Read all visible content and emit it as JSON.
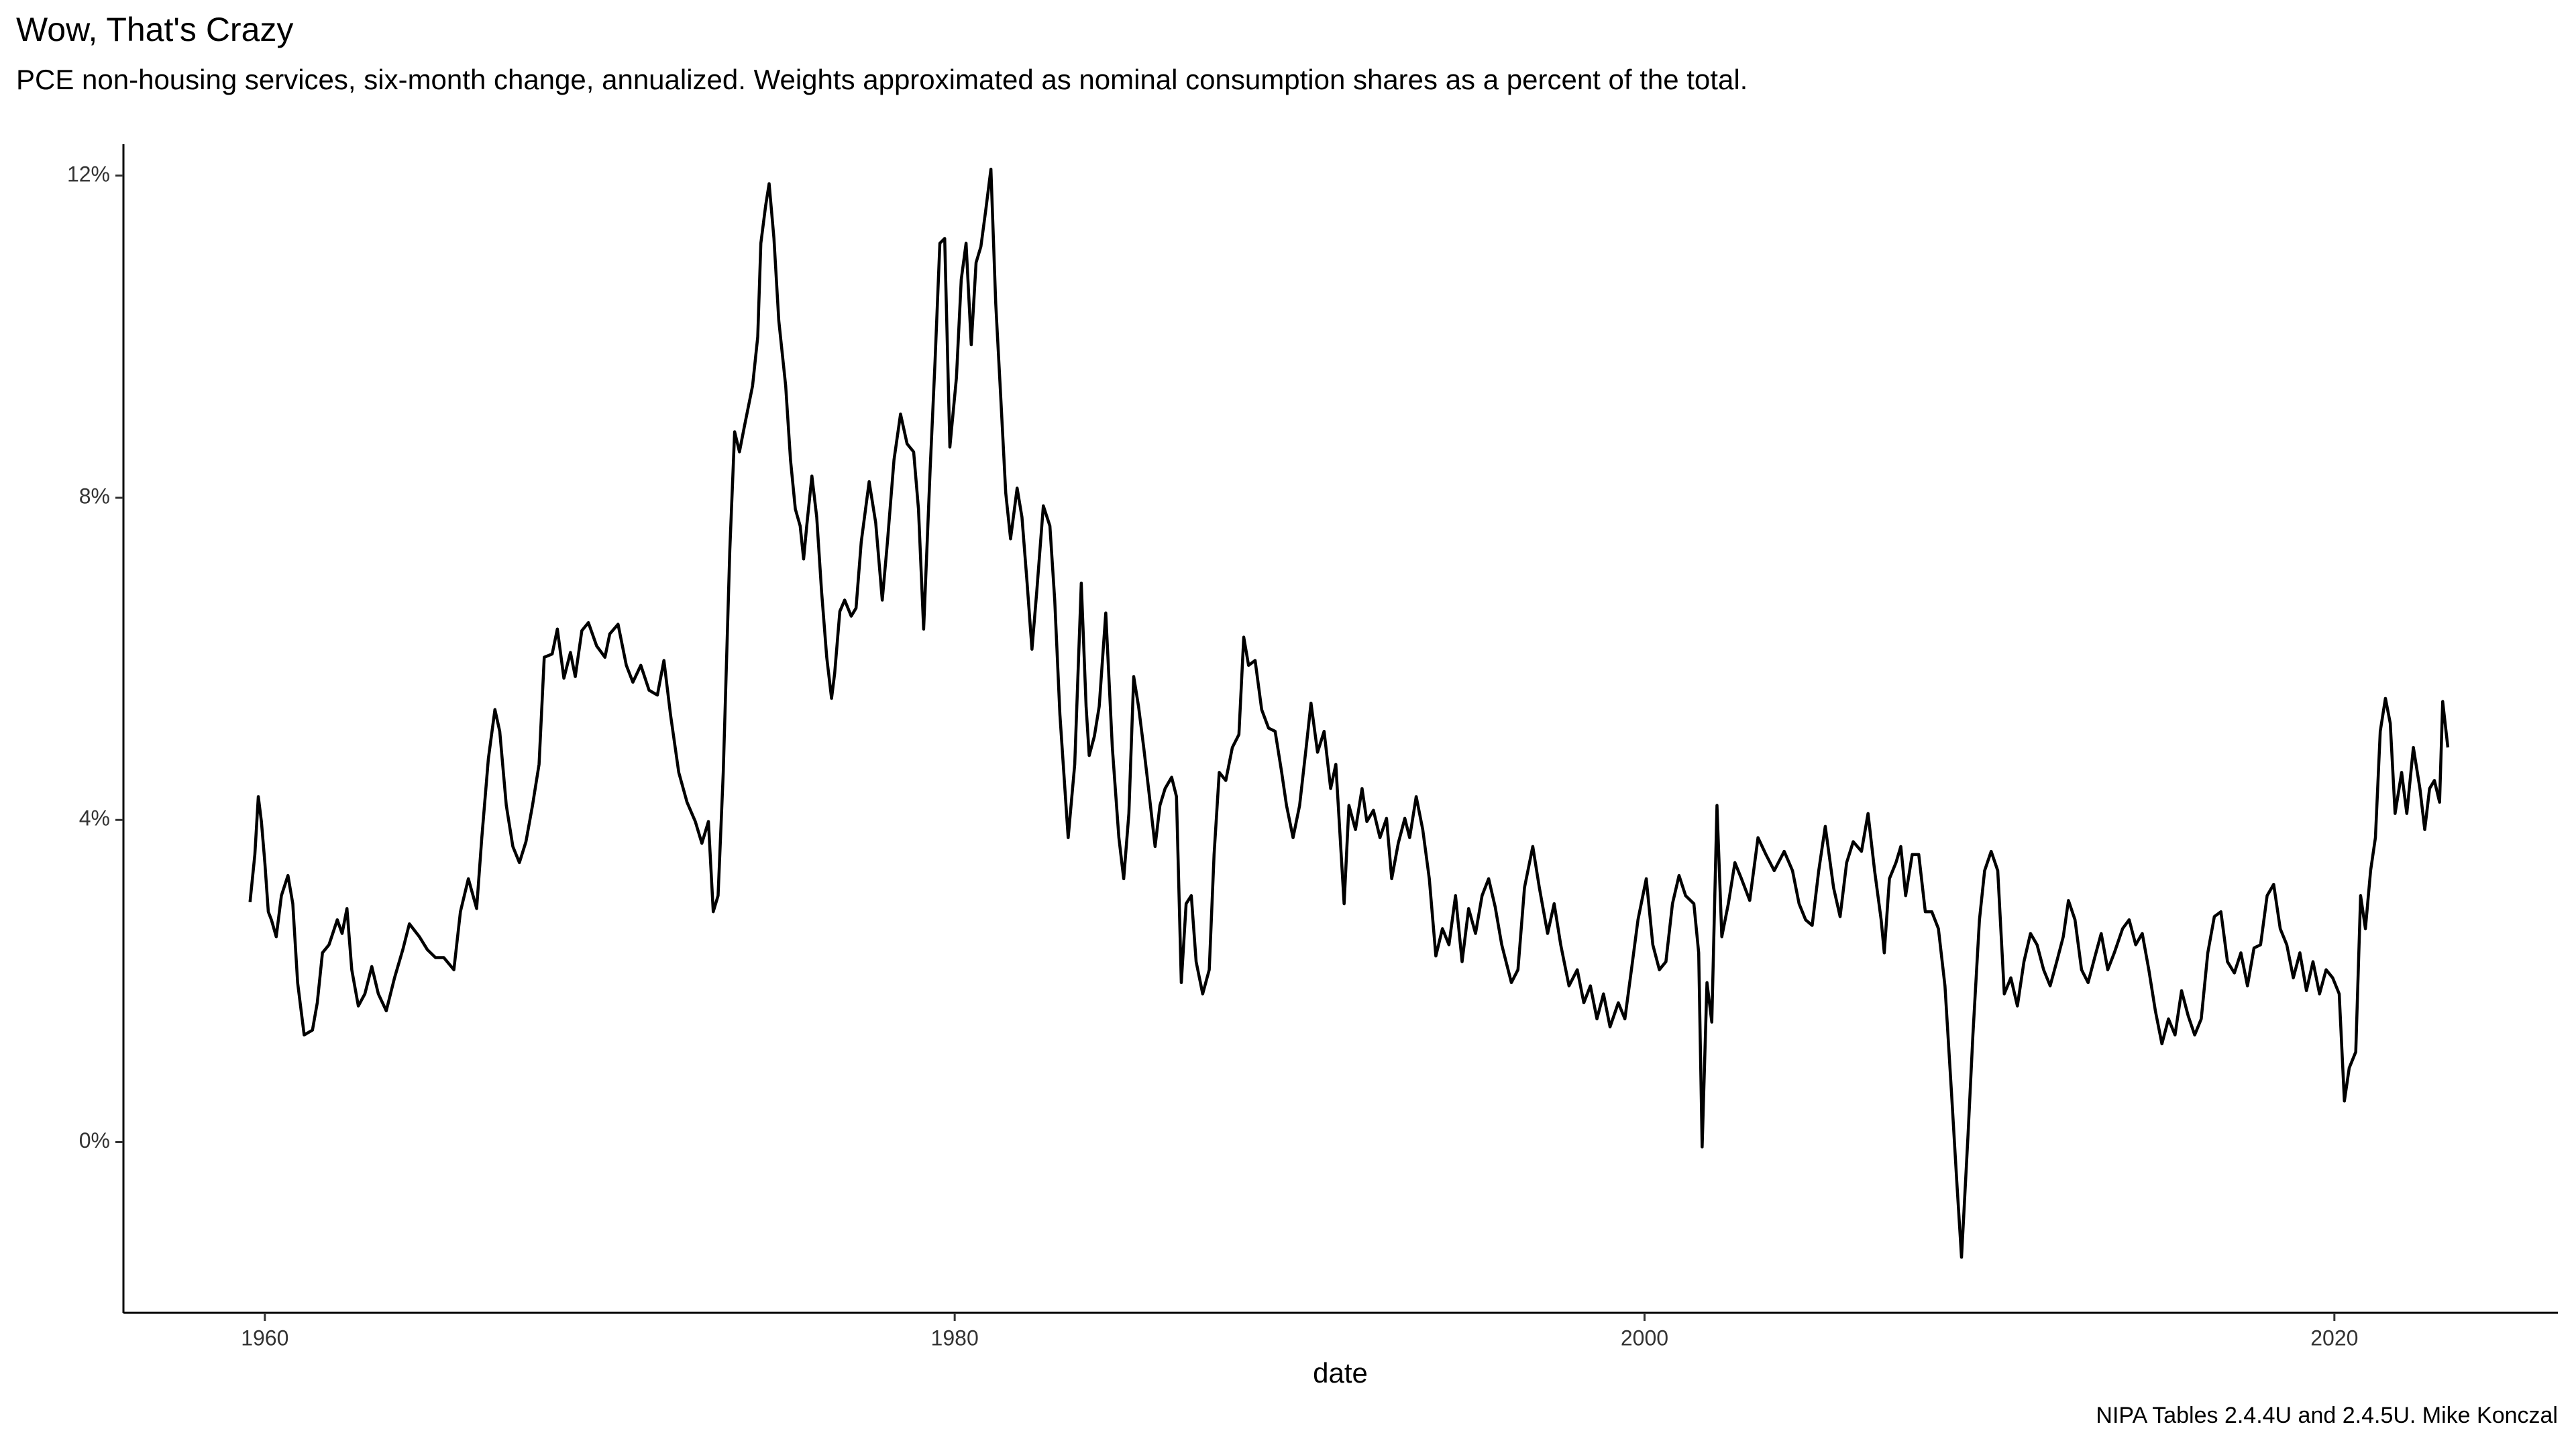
{
  "chart_data": {
    "type": "line",
    "title": "Wow, That's Crazy",
    "subtitle": "PCE non-housing services, six-month change, annualized. Weights approximated as nominal consumption shares as a percent of the total.",
    "x_label": "date",
    "caption": "NIPA Tables 2.4.4U and 2.4.5U. Mike Konczal",
    "color": "#000000",
    "xlim": [
      1955.9,
      2026.48
    ],
    "ylim": [
      -2.12,
      12.39
    ],
    "xticks": [
      1960,
      1980,
      2000,
      2020
    ],
    "yticks": [
      {
        "value": 0,
        "label": "0%"
      },
      {
        "value": 4,
        "label": "4%"
      },
      {
        "value": 8,
        "label": "8%"
      },
      {
        "value": 12,
        "label": "12%"
      }
    ],
    "grid": false,
    "x": [
      1959.57,
      1959.71,
      1959.81,
      1959.9,
      1960,
      1960.1,
      1960.19,
      1960.33,
      1960.48,
      1960.67,
      1960.81,
      1960.95,
      1961.14,
      1961.38,
      1961.52,
      1961.67,
      1961.86,
      1962.1,
      1962.24,
      1962.38,
      1962.52,
      1962.71,
      1962.9,
      1963.1,
      1963.29,
      1963.52,
      1963.76,
      1964.0,
      1964.19,
      1964.48,
      1964.71,
      1964.95,
      1965.19,
      1965.48,
      1965.67,
      1965.9,
      1966.14,
      1966.29,
      1966.48,
      1966.67,
      1966.81,
      1967.0,
      1967.19,
      1967.38,
      1967.57,
      1967.76,
      1967.95,
      1968.1,
      1968.33,
      1968.48,
      1968.67,
      1968.86,
      1969.0,
      1969.19,
      1969.38,
      1969.62,
      1969.86,
      1970.0,
      1970.24,
      1970.48,
      1970.67,
      1970.9,
      1971.14,
      1971.38,
      1971.57,
      1971.76,
      1972.0,
      1972.24,
      1972.48,
      1972.67,
      1972.86,
      1973.0,
      1973.14,
      1973.29,
      1973.48,
      1973.62,
      1973.76,
      1973.9,
      1974.14,
      1974.29,
      1974.38,
      1974.52,
      1974.62,
      1974.76,
      1974.9,
      1975.1,
      1975.24,
      1975.38,
      1975.52,
      1975.62,
      1975.71,
      1975.86,
      1976.0,
      1976.14,
      1976.29,
      1976.43,
      1976.52,
      1976.67,
      1976.81,
      1977.0,
      1977.14,
      1977.29,
      1977.52,
      1977.71,
      1977.9,
      1978.05,
      1978.24,
      1978.43,
      1978.62,
      1978.81,
      1978.95,
      1979.1,
      1979.29,
      1979.43,
      1979.57,
      1979.71,
      1979.86,
      1980.05,
      1980.19,
      1980.33,
      1980.48,
      1980.62,
      1980.76,
      1980.9,
      1981.05,
      1981.19,
      1981.33,
      1981.48,
      1981.62,
      1981.81,
      1981.95,
      1982.1,
      1982.24,
      1982.38,
      1982.57,
      1982.76,
      1982.9,
      1983.05,
      1983.29,
      1983.48,
      1983.67,
      1983.81,
      1983.9,
      1984.05,
      1984.19,
      1984.38,
      1984.57,
      1984.76,
      1984.9,
      1985.05,
      1985.19,
      1985.33,
      1985.48,
      1985.62,
      1985.81,
      1985.95,
      1986.1,
      1986.29,
      1986.43,
      1986.57,
      1986.71,
      1986.86,
      1987.0,
      1987.19,
      1987.38,
      1987.52,
      1987.67,
      1987.86,
      1988.05,
      1988.24,
      1988.38,
      1988.52,
      1988.71,
      1988.9,
      1989.1,
      1989.29,
      1989.48,
      1989.62,
      1989.81,
      1990.0,
      1990.19,
      1990.33,
      1990.52,
      1990.71,
      1990.9,
      1991.05,
      1991.29,
      1991.43,
      1991.62,
      1991.81,
      1991.95,
      1992.14,
      1992.33,
      1992.52,
      1992.67,
      1992.86,
      1993.05,
      1993.19,
      1993.38,
      1993.57,
      1993.76,
      1993.95,
      1994.14,
      1994.33,
      1994.52,
      1994.71,
      1994.9,
      1995.1,
      1995.29,
      1995.48,
      1995.67,
      1995.86,
      1996.14,
      1996.33,
      1996.52,
      1996.76,
      1996.95,
      1997.19,
      1997.38,
      1997.57,
      1997.81,
      1998.05,
      1998.24,
      1998.43,
      1998.62,
      1998.81,
      1999.0,
      1999.24,
      1999.43,
      1999.62,
      1999.81,
      2000.05,
      2000.24,
      2000.43,
      2000.62,
      2000.81,
      2001.0,
      2001.19,
      2001.43,
      2001.57,
      2001.67,
      2001.81,
      2001.95,
      2002.1,
      2002.24,
      2002.43,
      2002.62,
      2002.81,
      2003.05,
      2003.29,
      2003.52,
      2003.76,
      2004.05,
      2004.29,
      2004.48,
      2004.67,
      2004.86,
      2005.05,
      2005.24,
      2005.48,
      2005.67,
      2005.86,
      2006.05,
      2006.29,
      2006.48,
      2006.67,
      2006.86,
      2006.95,
      2007.1,
      2007.29,
      2007.43,
      2007.57,
      2007.76,
      2007.95,
      2008.14,
      2008.33,
      2008.52,
      2008.71,
      2008.9,
      2009.05,
      2009.19,
      2009.38,
      2009.52,
      2009.71,
      2009.86,
      2010.05,
      2010.24,
      2010.43,
      2010.62,
      2010.81,
      2011.0,
      2011.19,
      2011.38,
      2011.57,
      2011.76,
      2011.95,
      2012.14,
      2012.29,
      2012.48,
      2012.67,
      2012.86,
      2013.05,
      2013.24,
      2013.43,
      2013.62,
      2013.86,
      2014.05,
      2014.24,
      2014.43,
      2014.62,
      2014.81,
      2015.0,
      2015.19,
      2015.38,
      2015.57,
      2015.76,
      2015.95,
      2016.14,
      2016.33,
      2016.52,
      2016.71,
      2016.9,
      2017.1,
      2017.29,
      2017.48,
      2017.67,
      2017.86,
      2018.05,
      2018.24,
      2018.43,
      2018.62,
      2018.81,
      2019.0,
      2019.19,
      2019.38,
      2019.57,
      2019.76,
      2019.95,
      2020.14,
      2020.29,
      2020.43,
      2020.62,
      2020.76,
      2020.9,
      2021.05,
      2021.19,
      2021.33,
      2021.48,
      2021.62,
      2021.76,
      2021.95,
      2022.1,
      2022.29,
      2022.48,
      2022.62,
      2022.76,
      2022.9,
      2023.05,
      2023.14,
      2023.29
    ],
    "values": [
      2.98,
      3.57,
      4.29,
      3.98,
      3.47,
      2.86,
      2.76,
      2.55,
      3.06,
      3.31,
      2.96,
      1.98,
      1.33,
      1.39,
      1.73,
      2.35,
      2.45,
      2.76,
      2.59,
      2.9,
      2.14,
      1.69,
      1.84,
      2.18,
      1.84,
      1.63,
      2.04,
      2.39,
      2.71,
      2.55,
      2.39,
      2.29,
      2.29,
      2.14,
      2.86,
      3.27,
      2.9,
      3.78,
      4.76,
      5.37,
      5.1,
      4.18,
      3.67,
      3.47,
      3.73,
      4.18,
      4.69,
      6.02,
      6.06,
      6.37,
      5.76,
      6.08,
      5.78,
      6.35,
      6.45,
      6.16,
      6.02,
      6.31,
      6.43,
      5.92,
      5.71,
      5.92,
      5.61,
      5.55,
      5.98,
      5.31,
      4.59,
      4.22,
      3.98,
      3.71,
      3.98,
      2.86,
      3.06,
      4.59,
      7.35,
      8.82,
      8.57,
      8.88,
      9.39,
      10.0,
      11.16,
      11.63,
      11.9,
      11.22,
      10.2,
      9.39,
      8.47,
      7.86,
      7.65,
      7.24,
      7.65,
      8.27,
      7.76,
      6.84,
      6.02,
      5.51,
      5.82,
      6.59,
      6.73,
      6.53,
      6.63,
      7.45,
      8.2,
      7.69,
      6.73,
      7.45,
      8.47,
      9.04,
      8.67,
      8.57,
      7.86,
      6.37,
      8.37,
      9.69,
      11.16,
      11.22,
      8.63,
      9.49,
      10.71,
      11.16,
      9.9,
      10.92,
      11.12,
      11.57,
      12.08,
      10.41,
      9.29,
      8.06,
      7.49,
      8.12,
      7.76,
      6.94,
      6.12,
      6.84,
      7.9,
      7.65,
      6.73,
      5.31,
      3.78,
      4.69,
      6.94,
      5.41,
      4.8,
      5.04,
      5.41,
      6.57,
      4.9,
      3.78,
      3.27,
      4.08,
      5.78,
      5.41,
      4.9,
      4.39,
      3.67,
      4.18,
      4.39,
      4.53,
      4.29,
      1.98,
      2.96,
      3.06,
      2.24,
      1.84,
      2.14,
      3.57,
      4.59,
      4.49,
      4.9,
      5.06,
      6.27,
      5.92,
      5.98,
      5.37,
      5.14,
      5.1,
      4.59,
      4.18,
      3.78,
      4.18,
      4.9,
      5.45,
      4.84,
      5.1,
      4.39,
      4.69,
      2.96,
      4.18,
      3.88,
      4.39,
      3.98,
      4.12,
      3.78,
      4.02,
      3.27,
      3.71,
      4.02,
      3.78,
      4.29,
      3.88,
      3.27,
      2.31,
      2.65,
      2.45,
      3.06,
      2.24,
      2.9,
      2.59,
      3.06,
      3.27,
      2.92,
      2.45,
      1.98,
      2.14,
      3.16,
      3.67,
      3.16,
      2.59,
      2.96,
      2.45,
      1.94,
      2.14,
      1.73,
      1.94,
      1.53,
      1.84,
      1.43,
      1.73,
      1.53,
      2.14,
      2.76,
      3.27,
      2.45,
      2.14,
      2.24,
      2.96,
      3.31,
      3.06,
      2.96,
      2.35,
      -0.06,
      1.98,
      1.49,
      4.18,
      2.55,
      2.96,
      3.47,
      3.27,
      3.0,
      3.78,
      3.57,
      3.37,
      3.61,
      3.37,
      2.96,
      2.76,
      2.69,
      3.37,
      3.92,
      3.16,
      2.8,
      3.47,
      3.73,
      3.61,
      4.08,
      3.37,
      2.76,
      2.35,
      3.27,
      3.47,
      3.67,
      3.06,
      3.57,
      3.57,
      2.86,
      2.86,
      2.65,
      1.94,
      0.61,
      -0.47,
      -1.43,
      0.1,
      1.33,
      2.76,
      3.37,
      3.61,
      3.37,
      1.84,
      2.04,
      1.69,
      2.24,
      2.59,
      2.45,
      2.14,
      1.94,
      2.24,
      2.55,
      3.0,
      2.76,
      2.14,
      1.98,
      2.29,
      2.59,
      2.14,
      2.35,
      2.65,
      2.76,
      2.45,
      2.59,
      2.14,
      1.63,
      1.22,
      1.53,
      1.33,
      1.88,
      1.57,
      1.33,
      1.53,
      2.35,
      2.8,
      2.86,
      2.24,
      2.1,
      2.35,
      1.94,
      2.41,
      2.45,
      3.06,
      3.2,
      2.65,
      2.45,
      2.04,
      2.35,
      1.88,
      2.24,
      1.84,
      2.14,
      2.04,
      1.84,
      0.51,
      0.92,
      1.12,
      3.06,
      2.65,
      3.37,
      3.78,
      5.1,
      5.51,
      5.2,
      4.08,
      4.59,
      4.08,
      4.9,
      4.39,
      3.88,
      4.39,
      4.49,
      4.22,
      5.47,
      4.9
    ]
  }
}
